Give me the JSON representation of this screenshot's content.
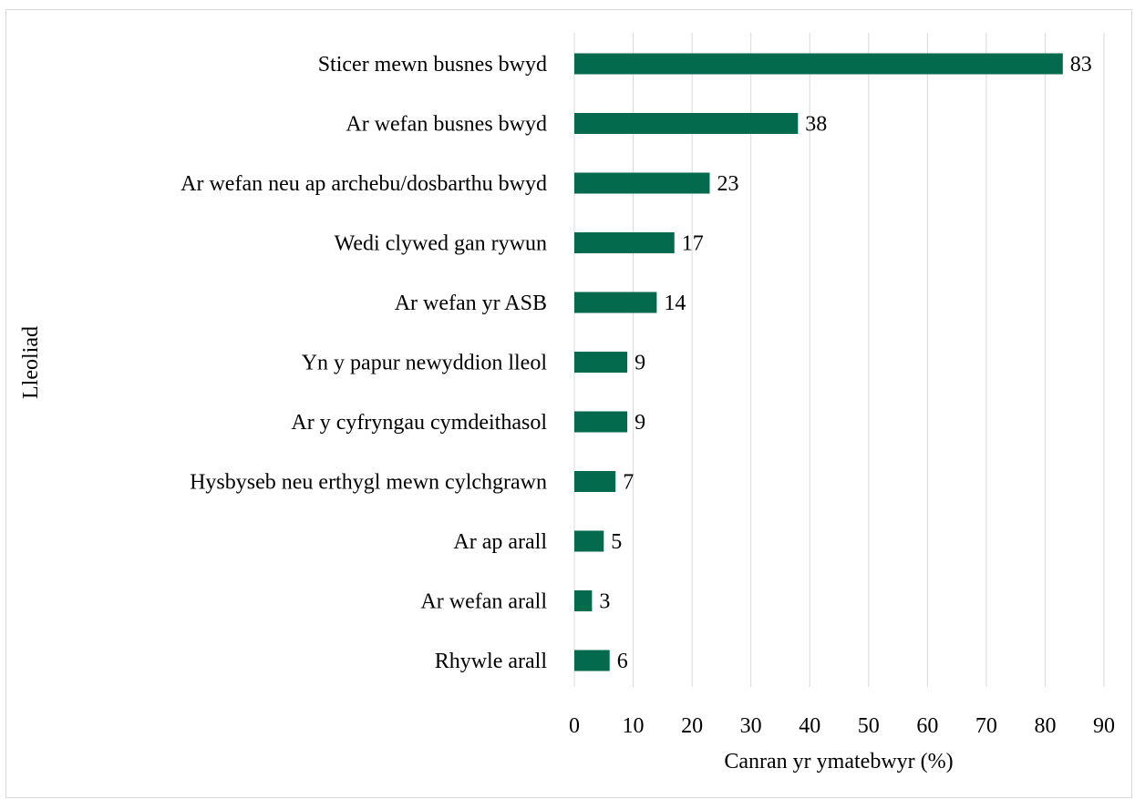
{
  "chart_data": {
    "type": "bar",
    "orientation": "horizontal",
    "title": "",
    "xlabel": "Canran yr ymatebwyr (%)",
    "ylabel": "Lleoliad",
    "xlim": [
      0,
      90
    ],
    "xticks": [
      0,
      10,
      20,
      30,
      40,
      50,
      60,
      70,
      80,
      90
    ],
    "grid": true,
    "legend": "none",
    "categories": [
      "Sticer mewn busnes bwyd",
      "Ar wefan busnes bwyd",
      "Ar wefan neu ap archebu/dosbarthu bwyd",
      "Wedi clywed gan rywun",
      "Ar wefan yr ASB",
      "Yn y papur newyddion lleol",
      "Ar y cyfryngau cymdeithasol",
      "Hysbyseb neu erthygl mewn cylchgrawn",
      "Ar ap arall",
      "Ar wefan arall",
      "Rhywle arall"
    ],
    "values": [
      83,
      38,
      23,
      17,
      14,
      9,
      9,
      7,
      5,
      3,
      6
    ],
    "bar_color": "#046A4D",
    "grid_color": "#d9d9d9"
  }
}
